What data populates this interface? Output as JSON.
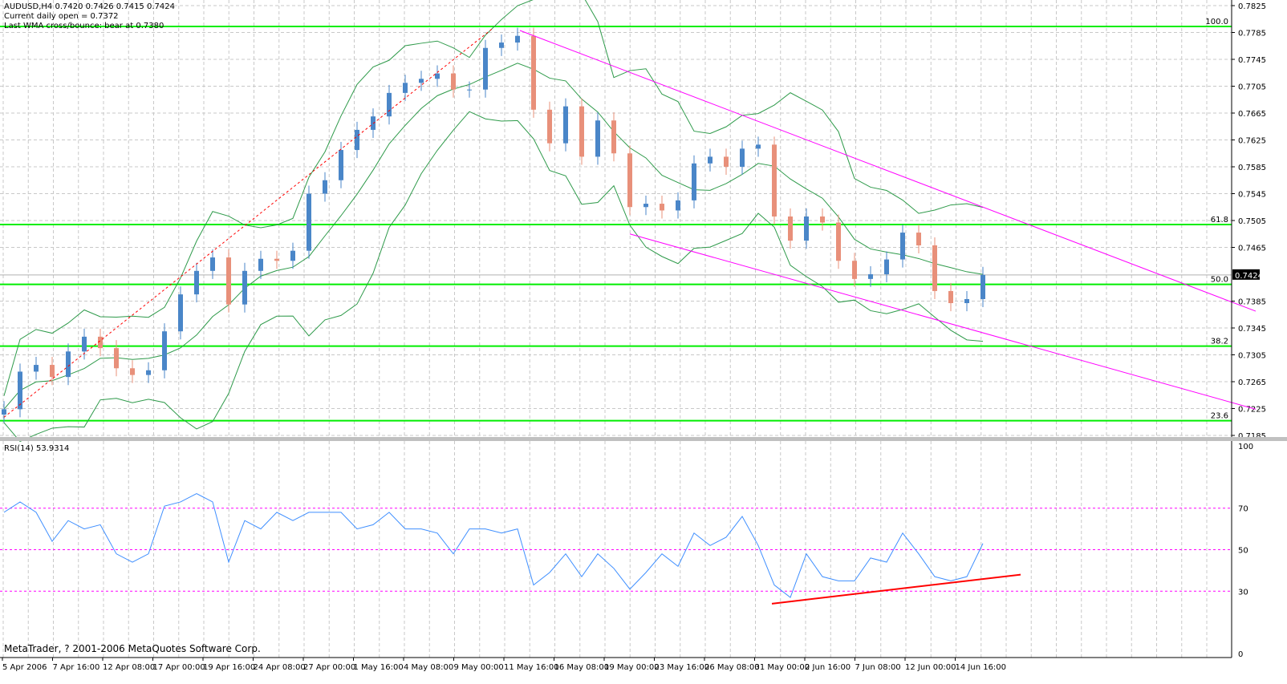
{
  "header": {
    "symbol_line": "AUDUSD,H4  0.7420 0.7426 0.7415 0.7424",
    "daily_open": "Current daily open = 0.7372",
    "wma_note": "Last WMA cross/bounce: bear at 0.7380"
  },
  "rsi_label": "RSI(14) 53.9314",
  "copyright": "MetaTrader, ? 2001-2006 MetaQuotes Software Corp.",
  "colors": {
    "bull": "#4a86c8",
    "bear": "#e8907a",
    "bands": "#2e9a4a",
    "fib": "#00ee00",
    "channel": "#ff00ff",
    "trend": "#ff0000",
    "rsi": "#3f8fff",
    "rsi_levels": "#ff00ff"
  },
  "chart_data": [
    {
      "type": "candlestick",
      "title": "AUDUSD,H4",
      "current_price": "0.7424",
      "ylim": [
        0.7185,
        0.7825
      ],
      "y_ticks": [
        "0.7825",
        "0.7785",
        "0.7745",
        "0.7705",
        "0.7665",
        "0.7625",
        "0.7585",
        "0.7545",
        "0.7505",
        "0.7465",
        "0.7385",
        "0.7345",
        "0.7305",
        "0.7265",
        "0.7225",
        "0.7185"
      ],
      "x_ticks": [
        "5 Apr 2006",
        "7 Apr 16:00",
        "12 Apr 08:00",
        "17 Apr 00:00",
        "19 Apr 16:00",
        "24 Apr 08:00",
        "27 Apr 00:00",
        "1 May 16:00",
        "4 May 08:00",
        "9 May 00:00",
        "11 May 16:00",
        "16 May 08:00",
        "19 May 00:00",
        "23 May 16:00",
        "26 May 08:00",
        "31 May 00:00",
        "2 Jun 16:00",
        "7 Jun 08:00",
        "12 Jun 00:00",
        "14 Jun 16:00"
      ],
      "closes": [
        0.7224,
        0.728,
        0.729,
        0.7272,
        0.731,
        0.7332,
        0.7315,
        0.7285,
        0.7275,
        0.7282,
        0.734,
        0.7395,
        0.743,
        0.745,
        0.738,
        0.743,
        0.7448,
        0.7445,
        0.746,
        0.7545,
        0.7565,
        0.761,
        0.764,
        0.766,
        0.7695,
        0.771,
        0.7716,
        0.7724,
        0.77,
        0.77,
        0.7762,
        0.777,
        0.778,
        0.767,
        0.762,
        0.7675,
        0.76,
        0.7654,
        0.7605,
        0.7525,
        0.753,
        0.752,
        0.7535,
        0.759,
        0.76,
        0.7585,
        0.7612,
        0.7618,
        0.7511,
        0.7475,
        0.7511,
        0.7502,
        0.7445,
        0.7418,
        0.7425,
        0.7447,
        0.7487,
        0.7468,
        0.74,
        0.7382,
        0.7388,
        0.7424
      ],
      "fib_levels": [
        {
          "label": "100.0",
          "price": 0.7794
        },
        {
          "label": "61.8",
          "price": 0.7499
        },
        {
          "label": "50.0",
          "price": 0.741
        },
        {
          "label": "38.2",
          "price": 0.7318
        },
        {
          "label": "23.6",
          "price": 0.7207
        }
      ],
      "lines": [
        {
          "kind": "trend-dashed",
          "from": [
            0,
            0.7212
          ],
          "to": [
            30.5,
            0.7792
          ]
        },
        {
          "kind": "channel-upper",
          "from": [
            32.15,
            0.7788
          ],
          "to": [
            78,
            0.737
          ]
        },
        {
          "kind": "channel-lower",
          "from": [
            39,
            0.7485
          ],
          "to": [
            78,
            0.7224
          ]
        }
      ]
    },
    {
      "type": "line",
      "title": "RSI(14) 53.9314",
      "ylim": [
        0,
        100
      ],
      "y_ticks": [
        "100",
        "70",
        "50",
        "30",
        "0"
      ],
      "levels": [
        70,
        50,
        30
      ],
      "values": [
        68,
        73,
        68,
        54,
        64,
        60,
        62,
        48,
        44,
        48,
        71,
        73,
        77,
        73,
        44,
        64,
        60,
        68,
        64,
        68,
        68,
        68,
        60,
        62,
        68,
        60,
        60,
        58,
        48,
        60,
        60,
        58,
        60,
        33,
        39,
        48,
        37,
        48,
        41,
        31,
        39,
        48,
        42,
        58,
        52,
        56,
        66,
        52,
        33,
        27,
        48,
        37,
        35,
        35,
        46,
        44,
        58,
        48,
        37,
        35,
        37,
        53
      ],
      "divergence_line": {
        "from": [
          47.85,
          24
        ],
        "to": [
          63.35,
          38
        ]
      }
    }
  ]
}
